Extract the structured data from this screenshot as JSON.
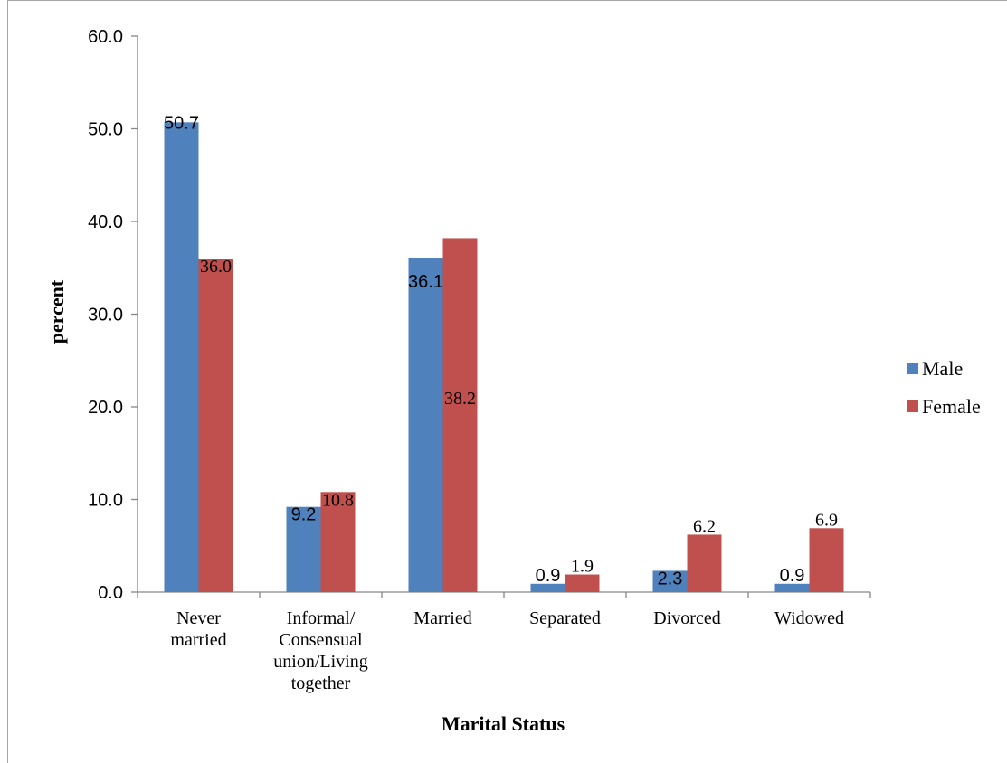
{
  "chart_data": {
    "type": "bar",
    "title": "",
    "xlabel": "Marital Status",
    "ylabel": "percent",
    "ylim": [
      0,
      60
    ],
    "yticks": [
      "0.0",
      "10.0",
      "20.0",
      "30.0",
      "40.0",
      "50.0",
      "60.0"
    ],
    "categories": [
      [
        "Never",
        "married"
      ],
      [
        "Informal/",
        "Consensual",
        "union/Living",
        "together"
      ],
      [
        "Married"
      ],
      [
        "Separated"
      ],
      [
        "Divorced"
      ],
      [
        "Widowed"
      ]
    ],
    "series": [
      {
        "name": "Male",
        "color": "#4f81bd",
        "values": [
          50.7,
          9.2,
          36.1,
          0.9,
          2.3,
          0.9
        ],
        "labels": [
          "50.7",
          "9.2",
          "36.1",
          "0.9",
          "2.3",
          "0.9"
        ]
      },
      {
        "name": "Female",
        "color": "#c0504d",
        "values": [
          36.0,
          10.8,
          38.2,
          1.9,
          6.2,
          6.9
        ],
        "labels": [
          "36.0",
          "10.8",
          "38.2",
          "1.9",
          "6.2",
          "6.9"
        ]
      }
    ],
    "legend_position": "right",
    "grid": false
  }
}
